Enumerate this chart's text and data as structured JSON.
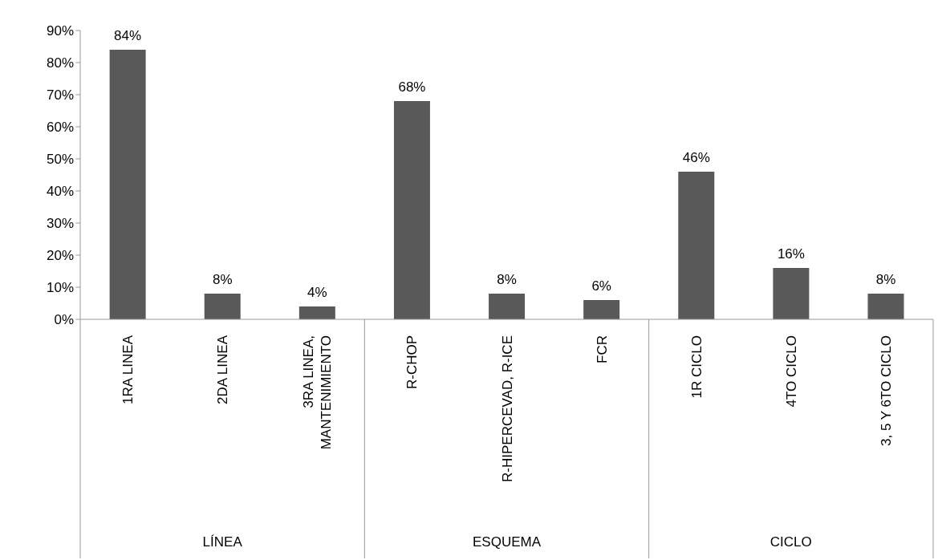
{
  "chart_data": {
    "type": "bar",
    "categories": [
      "1RA LINEA",
      "2DA LINEA",
      "3RA LINEA, MANTENIMIENTO",
      "R-CHOP",
      "R-HIPERCEVAD, R-ICE",
      "FCR",
      "1R CICLO",
      "4TO CICLO",
      "3, 5 Y 6TO CICLO"
    ],
    "values": [
      84,
      8,
      4,
      68,
      8,
      6,
      46,
      16,
      8
    ],
    "value_labels": [
      "84%",
      "8%",
      "4%",
      "68%",
      "8%",
      "6%",
      "46%",
      "16%",
      "8%"
    ],
    "color": "#595959",
    "ylim": [
      0,
      90
    ],
    "yticks": [
      {
        "value": 0,
        "label": "0%"
      },
      {
        "value": 10,
        "label": "10%"
      },
      {
        "value": 20,
        "label": "20%"
      },
      {
        "value": 30,
        "label": "30%"
      },
      {
        "value": 40,
        "label": "40%"
      },
      {
        "value": 50,
        "label": "50%"
      },
      {
        "value": 60,
        "label": "60%"
      },
      {
        "value": 70,
        "label": "70%"
      },
      {
        "value": 80,
        "label": "80%"
      },
      {
        "value": 90,
        "label": "90%"
      }
    ],
    "annotations": [
      "LÍNEA",
      "ESQUEMA",
      "CICLO"
    ],
    "grid": false,
    "legend": false
  }
}
